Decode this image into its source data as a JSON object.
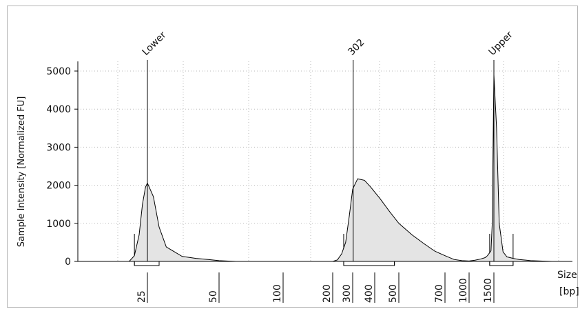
{
  "chart_data": {
    "type": "area",
    "title": "",
    "ylabel": "Sample Intensity [Normalized FU]",
    "xlabel": "Size",
    "xunit": "[bp]",
    "ylim": [
      0,
      5300
    ],
    "yticks": [
      0,
      1000,
      2000,
      3000,
      4000,
      5000
    ],
    "xticks": [
      25,
      50,
      100,
      200,
      300,
      400,
      500,
      700,
      1000,
      1500
    ],
    "grid": true,
    "fill_color": "#e4e4e4",
    "line_color": "#000000",
    "peak_markers": [
      {
        "label": "Lower",
        "size": 25
      },
      {
        "label": "302",
        "size": 302
      },
      {
        "label": "Upper",
        "size": 1500
      }
    ],
    "regions": [
      {
        "from": 19,
        "to": 28
      },
      {
        "from": 250,
        "to": 480
      },
      {
        "from": 1400,
        "to": 1650
      }
    ],
    "series": [
      {
        "x": [
          10,
          17,
          19,
          21,
          22.5,
          24,
          25,
          26.5,
          28,
          30,
          35,
          40,
          45,
          48,
          50,
          60,
          80,
          100,
          130,
          170,
          200,
          220,
          240,
          260,
          280,
          300,
          320,
          350,
          380,
          420,
          460,
          500,
          550,
          600,
          650,
          700,
          800,
          900,
          1000,
          1100,
          1200,
          1300,
          1350,
          1400,
          1430,
          1460,
          1480,
          1500,
          1520,
          1540,
          1570,
          1600,
          1650,
          1700,
          1800,
          2000,
          2200
        ],
        "y": [
          0,
          0,
          150,
          700,
          1500,
          1950,
          2060,
          1700,
          900,
          380,
          130,
          80,
          50,
          30,
          20,
          0,
          0,
          0,
          0,
          0,
          0,
          40,
          200,
          500,
          1200,
          1900,
          2170,
          2130,
          1950,
          1650,
          1300,
          1000,
          700,
          470,
          270,
          150,
          50,
          20,
          10,
          30,
          60,
          100,
          150,
          230,
          280,
          1000,
          3000,
          4900,
          3500,
          1000,
          250,
          120,
          80,
          50,
          20,
          0,
          0
        ]
      }
    ]
  }
}
